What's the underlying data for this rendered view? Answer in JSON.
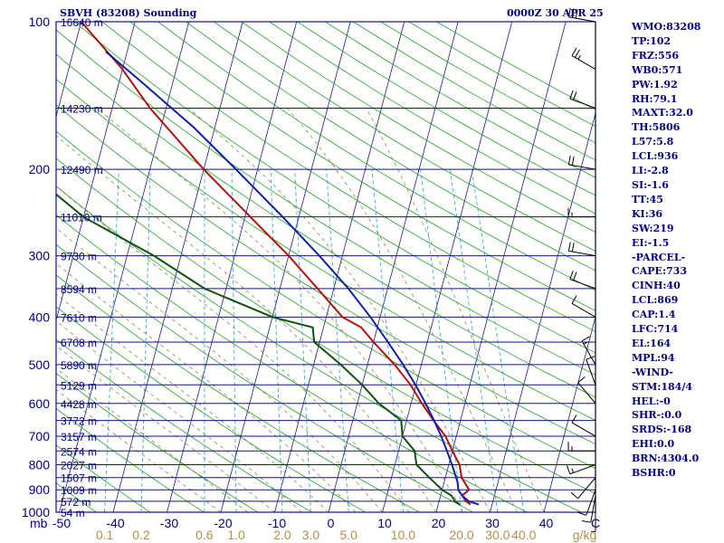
{
  "header": {
    "station": "SBVH (83208) Sounding",
    "time": "0000Z 30 APR 25"
  },
  "indices": [
    "WMO:83208",
    "TP:102",
    "FRZ:556",
    "WB0:571",
    "PW:1.92",
    "RH:79.1",
    "MAXT:32.0",
    "TH:5806",
    "L57:5.8",
    "LCL:936",
    "LI:-2.8",
    "SI:-1.6",
    "TT:45",
    "KI:36",
    "SW:219",
    "EI:-1.5",
    "-PARCEL-",
    "CAPE:733",
    "CINH:40",
    "LCL:869",
    "CAP:1.4",
    "LFC:714",
    "EL:164",
    "MPL:94",
    "-WIND-",
    "STM:184/4",
    "HEL:-0",
    "SHR-:0.0",
    "SRDS:-168",
    "EHI:0.0",
    "BRN:4304.0",
    "BSHR:0"
  ],
  "chart_data": {
    "type": "line",
    "ylabel": "mb",
    "x_units": "g/kg",
    "pressure_range": [
      1000,
      100
    ],
    "temperature_range": [
      -50,
      50
    ],
    "pressure_ticks": [
      "100",
      "200",
      "300",
      "400",
      "500",
      "600",
      "700",
      "800",
      "900",
      "1000"
    ],
    "temperature_ticks": [
      "-50",
      "-40",
      "-30",
      "-20",
      "-10",
      "0",
      "10",
      "20",
      "30",
      "40"
    ],
    "temperature_tick_values": [
      -50,
      -40,
      -30,
      -20,
      -10,
      0,
      10,
      20,
      30,
      40
    ],
    "corner_tick": "C",
    "mixing_ratio_labels": [
      "0.1",
      "0.2",
      "0.6",
      "1.0",
      "2.0",
      "3.0",
      "5.0",
      "10.0",
      "20.0",
      "30.0",
      "40.0"
    ],
    "mixing_ratio_positions": [
      0.1,
      0.2,
      0.6,
      1,
      2,
      3,
      5,
      10,
      20,
      30,
      40
    ],
    "heights": [
      {
        "p": 100,
        "label": "16640 m"
      },
      {
        "p": 150,
        "label": "14230 m"
      },
      {
        "p": 200,
        "label": "12490 m"
      },
      {
        "p": 250,
        "label": "11010 m"
      },
      {
        "p": 300,
        "label": "9730 m"
      },
      {
        "p": 350,
        "label": "8594 m"
      },
      {
        "p": 400,
        "label": "7610 m"
      },
      {
        "p": 450,
        "label": "6708 m"
      },
      {
        "p": 500,
        "label": "5890 m"
      },
      {
        "p": 550,
        "label": "5129 m"
      },
      {
        "p": 600,
        "label": "4428 m"
      },
      {
        "p": 650,
        "label": "3772 m"
      },
      {
        "p": 700,
        "label": "3157 m"
      },
      {
        "p": 750,
        "label": "2574 m"
      },
      {
        "p": 800,
        "label": "2027 m"
      },
      {
        "p": 850,
        "label": "1507 m"
      },
      {
        "p": 900,
        "label": "1009 m"
      },
      {
        "p": 950,
        "label": "572 m"
      },
      {
        "p": 1000,
        "label": "54 m"
      }
    ],
    "series": [
      {
        "key": "temperature",
        "color": "#b01010",
        "points": [
          [
            964,
            26
          ],
          [
            950,
            25
          ],
          [
            925,
            24
          ],
          [
            900,
            25
          ],
          [
            850,
            23
          ],
          [
            800,
            22
          ],
          [
            750,
            20
          ],
          [
            700,
            18
          ],
          [
            650,
            15
          ],
          [
            600,
            12
          ],
          [
            550,
            9
          ],
          [
            500,
            5
          ],
          [
            450,
            0
          ],
          [
            420,
            -3
          ],
          [
            400,
            -7
          ],
          [
            350,
            -13
          ],
          [
            300,
            -20
          ],
          [
            250,
            -29
          ],
          [
            200,
            -40
          ],
          [
            150,
            -53
          ],
          [
            125,
            -60
          ],
          [
            100,
            -70
          ]
        ]
      },
      {
        "key": "dewpoint",
        "color": "#105010",
        "points": [
          [
            964,
            24
          ],
          [
            950,
            23
          ],
          [
            925,
            22
          ],
          [
            900,
            20
          ],
          [
            850,
            17
          ],
          [
            800,
            14
          ],
          [
            750,
            13
          ],
          [
            700,
            10
          ],
          [
            650,
            9
          ],
          [
            600,
            4
          ],
          [
            550,
            0
          ],
          [
            500,
            -5
          ],
          [
            450,
            -11
          ],
          [
            420,
            -12
          ],
          [
            400,
            -20
          ],
          [
            350,
            -34
          ],
          [
            300,
            -45
          ],
          [
            250,
            -60
          ],
          [
            200,
            -73
          ],
          [
            150,
            -76
          ],
          [
            125,
            -81
          ],
          [
            100,
            -87
          ]
        ]
      },
      {
        "key": "parcel",
        "color": "#1020a0",
        "points": [
          [
            964,
            27.5
          ],
          [
            950,
            25.5
          ],
          [
            925,
            24
          ],
          [
            900,
            23
          ],
          [
            869,
            22.5
          ],
          [
            850,
            22
          ],
          [
            800,
            20.6
          ],
          [
            750,
            19
          ],
          [
            700,
            17.2
          ],
          [
            650,
            15.1
          ],
          [
            600,
            12.7
          ],
          [
            550,
            9.9
          ],
          [
            500,
            6.6
          ],
          [
            450,
            2.7
          ],
          [
            400,
            -1.8
          ],
          [
            350,
            -7.3
          ],
          [
            300,
            -14.3
          ],
          [
            250,
            -23
          ],
          [
            200,
            -34
          ],
          [
            164,
            -44
          ],
          [
            150,
            -49
          ],
          [
            130,
            -57
          ],
          [
            115,
            -64
          ]
        ]
      }
    ],
    "wind_barbs": [
      {
        "p": 964,
        "dir": 180,
        "spd": 5
      },
      {
        "p": 925,
        "dir": 190,
        "spd": 10
      },
      {
        "p": 900,
        "dir": 200,
        "spd": 10
      },
      {
        "p": 850,
        "dir": 220,
        "spd": 10
      },
      {
        "p": 800,
        "dir": 250,
        "spd": 15
      },
      {
        "p": 750,
        "dir": 270,
        "spd": 15
      },
      {
        "p": 700,
        "dir": 300,
        "spd": 10
      },
      {
        "p": 600,
        "dir": 320,
        "spd": 10
      },
      {
        "p": 550,
        "dir": 340,
        "spd": 10
      },
      {
        "p": 500,
        "dir": 330,
        "spd": 15
      },
      {
        "p": 400,
        "dir": 300,
        "spd": 10
      },
      {
        "p": 350,
        "dir": 290,
        "spd": 20
      },
      {
        "p": 300,
        "dir": 280,
        "spd": 20
      },
      {
        "p": 250,
        "dir": 270,
        "spd": 15
      },
      {
        "p": 200,
        "dir": 280,
        "spd": 20
      },
      {
        "p": 150,
        "dir": 290,
        "spd": 20
      },
      {
        "p": 125,
        "dir": 300,
        "spd": 25
      },
      {
        "p": 100,
        "dir": 280,
        "spd": 30
      }
    ]
  }
}
